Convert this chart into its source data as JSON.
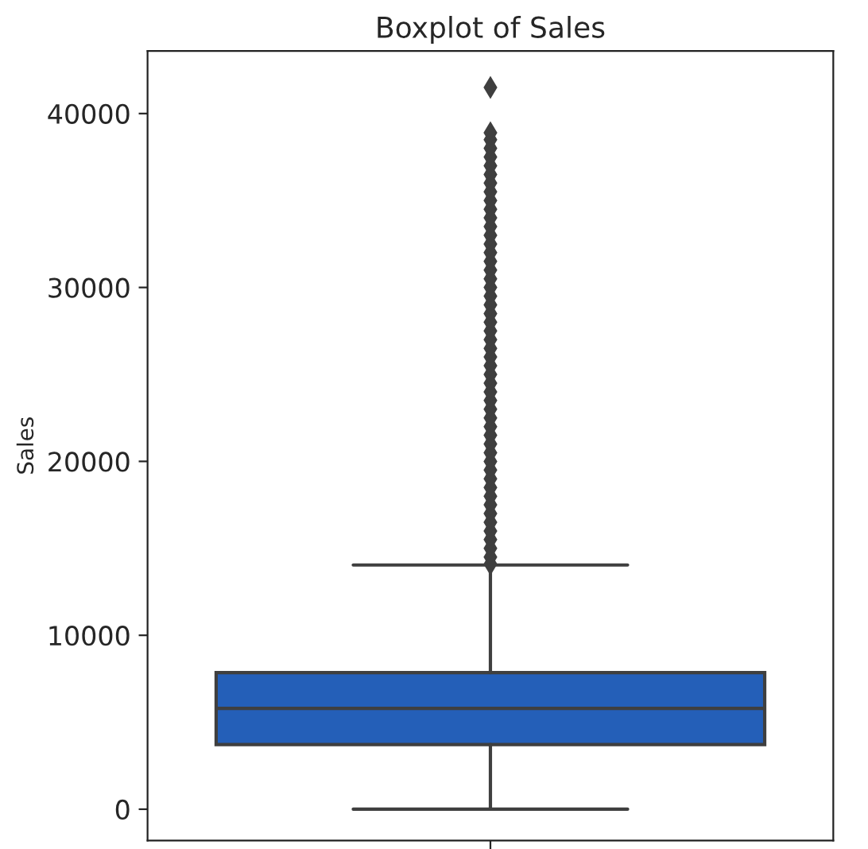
{
  "chart_data": {
    "type": "box",
    "title": "Boxplot of Sales",
    "ylabel": "Sales",
    "categories": [
      null
    ],
    "boxes": [
      {
        "low": 0,
        "q1": 3720,
        "median": 5800,
        "q3": 7850,
        "high": 14040,
        "outliers": [
          14100,
          14500,
          15000,
          15500,
          16000,
          16500,
          17000,
          17500,
          18000,
          18500,
          19000,
          19500,
          20000,
          20500,
          21000,
          21500,
          22000,
          22500,
          23000,
          23500,
          24000,
          24500,
          25000,
          25500,
          26000,
          26500,
          27000,
          27500,
          28000,
          28500,
          29000,
          29500,
          30000,
          30500,
          31000,
          31500,
          32000,
          32500,
          33000,
          33500,
          34000,
          34500,
          35000,
          35500,
          36000,
          36500,
          37000,
          37500,
          38000,
          38500,
          38900,
          41500
        ]
      }
    ],
    "color": "#245fb8",
    "ylim": [
      -1800,
      43600
    ],
    "yticks": [
      0,
      10000,
      20000,
      30000,
      40000
    ],
    "marker": "diamond",
    "grid": false
  }
}
